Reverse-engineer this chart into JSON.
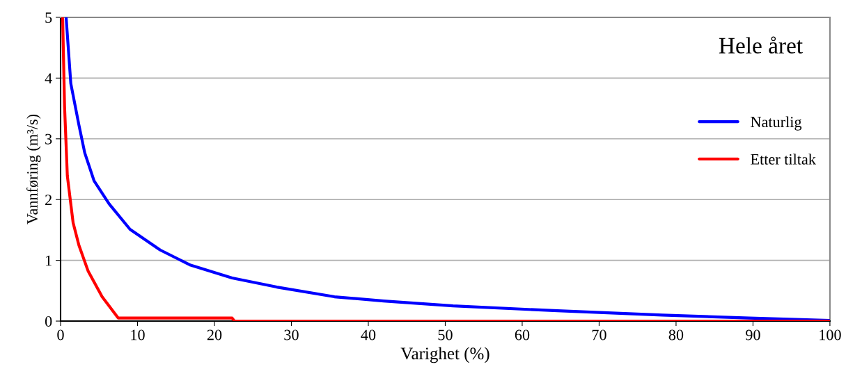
{
  "chart_data": {
    "type": "line",
    "xlabel": "Varighet (%)",
    "ylabel": "Vannføring (m³/s)",
    "annotations": [
      "Hele året"
    ],
    "xlim": [
      0,
      100
    ],
    "xticks": [
      0,
      10,
      20,
      30,
      40,
      50,
      60,
      70,
      80,
      90,
      100
    ],
    "ylim": [
      0,
      5
    ],
    "yticks": [
      0,
      1,
      2,
      3,
      4,
      5
    ],
    "grid": "y",
    "legend": "top right",
    "marker": "none",
    "line_style": "solid",
    "series": [
      {
        "name": "Naturlig",
        "color": "#0000ff",
        "x": [
          0.72,
          1.33,
          2.38,
          3.14,
          4.35,
          6.31,
          9.03,
          12.95,
          16.9,
          22.3,
          28.1,
          35.6,
          42,
          51,
          64.6,
          78.2,
          89.5,
          100
        ],
        "values": [
          5,
          3.91,
          3.23,
          2.77,
          2.31,
          1.93,
          1.51,
          1.17,
          0.92,
          0.71,
          0.56,
          0.4,
          0.33,
          0.25,
          0.17,
          0.1,
          0.05,
          0.01
        ]
      },
      {
        "name": "Etter tiltak",
        "color": "#ff0000",
        "x": [
          0.27,
          0.52,
          0.88,
          1.63,
          2.38,
          3.59,
          5.4,
          7.5,
          22.3,
          22.6,
          100
        ],
        "values": [
          5,
          3.53,
          2.39,
          1.62,
          1.25,
          0.82,
          0.4,
          0.05,
          0.05,
          0,
          0
        ]
      }
    ]
  }
}
